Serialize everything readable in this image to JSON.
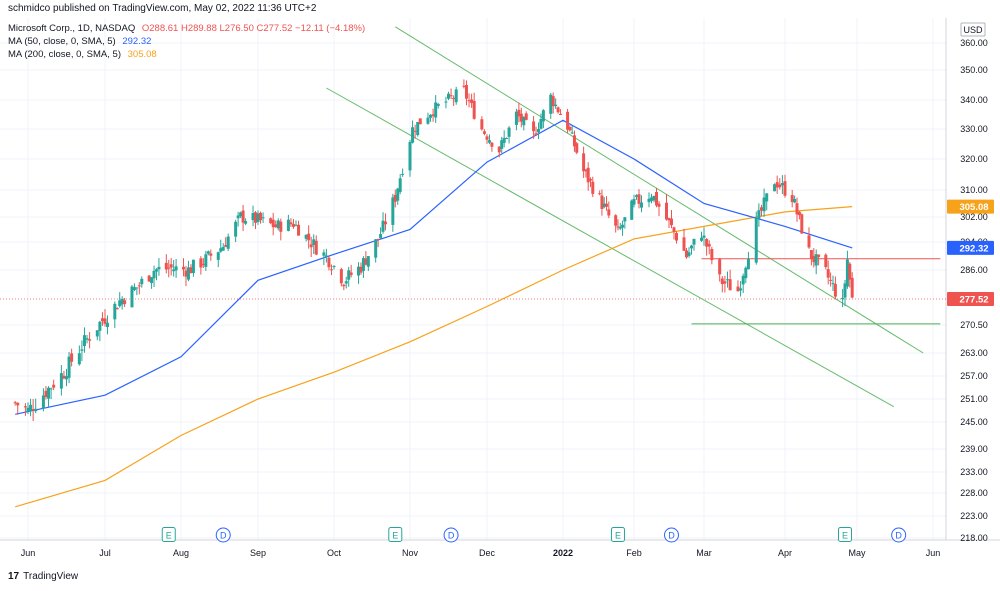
{
  "header": {
    "published_text": "schmidco published on TradingView.com, May 02, 2022 11:36 UTC+2"
  },
  "legend": {
    "symbol": "Microsoft Corp., 1D, NASDAQ",
    "ohlc": "O288.61  H289.88  L276.50  C277.52  −12.11 (−4.18%)",
    "ma50_label": "MA (50, close, 0, SMA, 5)",
    "ma50_value": "292.32",
    "ma200_label": "MA (200, close, 0, SMA, 5)",
    "ma200_value": "305.08"
  },
  "footer": {
    "brand": "TradingView",
    "logo": "17"
  },
  "colors": {
    "up": "#26a69a",
    "down": "#ef5350",
    "ma50": "#2962ff",
    "ma200": "#f7a21b",
    "channel": "#66bb6a",
    "resistance": "#ef5350",
    "support": "#4caf50",
    "earnings": "#26a69a",
    "dividend": "#2962ff"
  },
  "chart_data": {
    "type": "candlestick",
    "currency": "USD",
    "x_ticks": [
      "Jun",
      "Jul",
      "Aug",
      "Sep",
      "Oct",
      "Nov",
      "Dec",
      "2022",
      "Feb",
      "Mar",
      "Apr",
      "May",
      "Jun"
    ],
    "y_ticks": [
      360.0,
      350.0,
      340.0,
      330.0,
      320.0,
      310.0,
      302.0,
      294.0,
      286.0,
      277.52,
      270.5,
      263.0,
      257.0,
      251.0,
      245.0,
      239.0,
      233.0,
      228.0,
      223.0,
      218.0
    ],
    "y_tick_labels": [
      "360.00",
      "350.00",
      "340.00",
      "330.00",
      "320.00",
      "310.00",
      "302.00",
      "294.00",
      "286.00",
      "277.52",
      "270.50",
      "263.00",
      "257.00",
      "251.00",
      "245.00",
      "239.00",
      "233.00",
      "228.00",
      "223.00",
      "218.00"
    ],
    "price_labels": [
      {
        "name": "MA 200",
        "value": 305.08,
        "text": "305.08"
      },
      {
        "name": "MA 50",
        "value": 292.32,
        "text": "292.32"
      },
      {
        "name": "Last",
        "value": 277.52,
        "text": "277.52"
      }
    ],
    "close_path": [
      [
        "2021-05-27",
        250.0
      ],
      [
        "2021-06-01",
        248.0
      ],
      [
        "2021-06-08",
        253.0
      ],
      [
        "2021-06-15",
        258.0
      ],
      [
        "2021-06-22",
        265.0
      ],
      [
        "2021-06-29",
        271.0
      ],
      [
        "2021-07-07",
        277.0
      ],
      [
        "2021-07-14",
        281.0
      ],
      [
        "2021-07-21",
        286.0
      ],
      [
        "2021-07-28",
        286.5
      ],
      [
        "2021-08-04",
        286.0
      ],
      [
        "2021-08-11",
        289.0
      ],
      [
        "2021-08-18",
        293.0
      ],
      [
        "2021-08-25",
        302.0
      ],
      [
        "2021-09-01",
        301.0
      ],
      [
        "2021-09-08",
        299.0
      ],
      [
        "2021-09-15",
        300.0
      ],
      [
        "2021-09-22",
        294.0
      ],
      [
        "2021-09-29",
        289.0
      ],
      [
        "2021-10-05",
        283.0
      ],
      [
        "2021-10-12",
        287.0
      ],
      [
        "2021-10-19",
        295.0
      ],
      [
        "2021-10-26",
        308.0
      ],
      [
        "2021-11-02",
        330.0
      ],
      [
        "2021-11-09",
        336.0
      ],
      [
        "2021-11-16",
        340.0
      ],
      [
        "2021-11-22",
        343.0
      ],
      [
        "2021-11-29",
        330.0
      ],
      [
        "2021-12-06",
        323.0
      ],
      [
        "2021-12-13",
        335.0
      ],
      [
        "2021-12-20",
        328.0
      ],
      [
        "2021-12-27",
        341.0
      ],
      [
        "2022-01-03",
        331.0
      ],
      [
        "2022-01-10",
        316.0
      ],
      [
        "2022-01-18",
        306.0
      ],
      [
        "2022-01-25",
        297.0
      ],
      [
        "2022-02-01",
        306.0
      ],
      [
        "2022-02-08",
        309.0
      ],
      [
        "2022-02-15",
        300.0
      ],
      [
        "2022-02-22",
        290.0
      ],
      [
        "2022-02-28",
        297.0
      ],
      [
        "2022-03-07",
        283.0
      ],
      [
        "2022-03-14",
        280.0
      ],
      [
        "2022-03-21",
        300.0
      ],
      [
        "2022-03-28",
        313.0
      ],
      [
        "2022-04-04",
        308.0
      ],
      [
        "2022-04-11",
        291.0
      ],
      [
        "2022-04-18",
        285.0
      ],
      [
        "2022-04-25",
        276.0
      ],
      [
        "2022-04-27",
        289.0
      ],
      [
        "2022-04-29",
        277.52
      ]
    ],
    "ma50": [
      [
        "2021-05-27",
        247.0
      ],
      [
        "2021-07-01",
        252.0
      ],
      [
        "2021-08-01",
        262.0
      ],
      [
        "2021-09-01",
        283.0
      ],
      [
        "2021-10-01",
        290.5
      ],
      [
        "2021-11-01",
        298.0
      ],
      [
        "2021-12-01",
        319.0
      ],
      [
        "2022-01-01",
        333.0
      ],
      [
        "2022-02-01",
        320.0
      ],
      [
        "2022-03-01",
        306.0
      ],
      [
        "2022-04-01",
        299.0
      ],
      [
        "2022-04-29",
        292.32
      ]
    ],
    "ma200": [
      [
        "2021-05-27",
        225.0
      ],
      [
        "2021-07-01",
        231.0
      ],
      [
        "2021-08-01",
        242.0
      ],
      [
        "2021-09-01",
        251.0
      ],
      [
        "2021-10-01",
        258.0
      ],
      [
        "2021-11-01",
        266.0
      ],
      [
        "2021-12-01",
        275.5
      ],
      [
        "2022-01-01",
        286.0
      ],
      [
        "2022-02-01",
        295.0
      ],
      [
        "2022-03-01",
        299.0
      ],
      [
        "2022-04-01",
        303.5
      ],
      [
        "2022-04-29",
        305.08
      ]
    ],
    "events": [
      {
        "type": "E",
        "date": "2021-07-27"
      },
      {
        "type": "D",
        "date": "2021-08-18"
      },
      {
        "type": "E",
        "date": "2021-10-26"
      },
      {
        "type": "D",
        "date": "2021-11-17"
      },
      {
        "type": "E",
        "date": "2022-01-25"
      },
      {
        "type": "D",
        "date": "2022-02-16"
      },
      {
        "type": "E",
        "date": "2022-04-26"
      },
      {
        "type": "D",
        "date": "2022-05-18"
      }
    ],
    "trendlines": [
      {
        "name": "channel-upper",
        "from": [
          "2021-10-26",
          366.0
        ],
        "to": [
          "2022-05-28",
          263.0
        ]
      },
      {
        "name": "channel-lower",
        "from": [
          "2021-09-28",
          344.0
        ],
        "to": [
          "2022-05-16",
          249.0
        ]
      },
      {
        "name": "resistance",
        "from": [
          "2022-02-28",
          289.2
        ],
        "to": [
          "2022-06-04",
          289.2
        ]
      },
      {
        "name": "support",
        "from": [
          "2022-02-24",
          270.8
        ],
        "to": [
          "2022-06-04",
          270.8
        ]
      }
    ],
    "last_price": 277.52,
    "grid": true,
    "legend_position": "top-left"
  }
}
